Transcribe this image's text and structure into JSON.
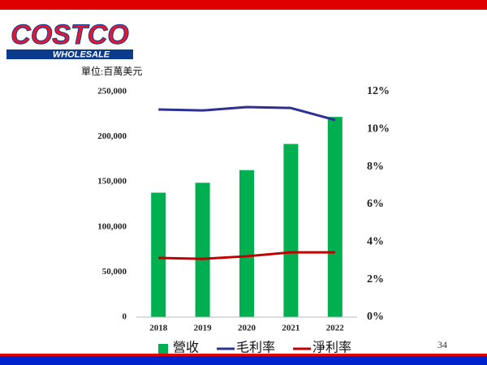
{
  "slide": {
    "logo_top": "COSTCO",
    "logo_bottom": "WHOLESALE",
    "page_number": "34"
  },
  "chart_data": {
    "type": "bar",
    "y_label": "單位:百萬美元",
    "categories": [
      "2018",
      "2019",
      "2020",
      "2021",
      "2022"
    ],
    "series": [
      {
        "name": "營收",
        "type": "bar",
        "color": "#00b050",
        "values": [
          138000,
          149000,
          163000,
          192000,
          222000
        ]
      },
      {
        "name": "毛利率",
        "type": "line",
        "axis": "y2",
        "color": "#2e3192",
        "values": [
          11.05,
          11.0,
          11.18,
          11.13,
          10.49
        ]
      },
      {
        "name": "淨利率",
        "type": "line",
        "axis": "y2",
        "color": "#c00000",
        "values": [
          3.15,
          3.1,
          3.24,
          3.45,
          3.45
        ]
      }
    ],
    "ylim": [
      0,
      250000
    ],
    "yticks": [
      0,
      {
        "value": 50000,
        "label": "50,000"
      },
      {
        "value": 100000,
        "label": "100,000"
      },
      {
        "value": 150000,
        "label": "150,000"
      },
      {
        "value": 200000,
        "label": "200,000"
      },
      {
        "value": 250000,
        "label": "250,000"
      }
    ],
    "y2lim": [
      0,
      12
    ],
    "y2ticks": [
      {
        "value": 0,
        "label": "0%"
      },
      {
        "value": 2,
        "label": "2%"
      },
      {
        "value": 4,
        "label": "4%"
      },
      {
        "value": 6,
        "label": "6%"
      },
      {
        "value": 8,
        "label": "8%"
      },
      {
        "value": 10,
        "label": "10%"
      },
      {
        "value": 12,
        "label": "12%"
      }
    ],
    "legend": "bottom"
  }
}
